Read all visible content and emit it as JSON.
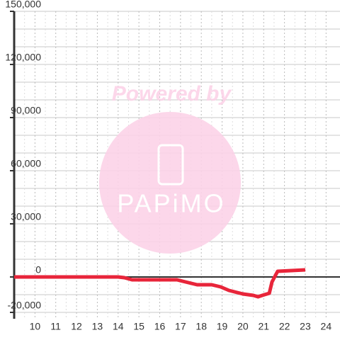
{
  "chart_data": {
    "type": "line",
    "watermark": {
      "line1": "Powered by",
      "line2": "PAPiMO"
    },
    "x": [
      9,
      14,
      14.3,
      14.67,
      16.83,
      17.1,
      17.8,
      18.5,
      18.93,
      19.33,
      20,
      20.5,
      20.73,
      20.93,
      21.27,
      21.4,
      21.67,
      23
    ],
    "series": [
      {
        "color": "#e8253a",
        "values": [
          0,
          0,
          -400,
          -1600,
          -1600,
          -2400,
          -4400,
          -4400,
          -5600,
          -7600,
          -9600,
          -10400,
          -11200,
          -10400,
          -9200,
          -2800,
          3200,
          4000
        ]
      }
    ],
    "xlim": [
      9,
      24.67
    ],
    "xticks": [
      10,
      11,
      12,
      13,
      14,
      15,
      16,
      17,
      18,
      19,
      20,
      21,
      22,
      23,
      24
    ],
    "ylim": [
      -23600,
      150000
    ],
    "yticks": [
      {
        "value": -20000,
        "label": "-20,000"
      },
      0,
      {
        "value": 30000,
        "label": "30,000"
      },
      {
        "value": 60000,
        "label": "60,000"
      },
      {
        "value": 90000,
        "label": "90,000"
      },
      {
        "value": 120000,
        "label": "120,000"
      },
      {
        "value": 150000,
        "label": "150,000"
      }
    ],
    "ygrid": [
      -20000,
      -10000,
      0,
      10000,
      20000,
      30000,
      40000,
      50000,
      60000,
      70000,
      80000,
      90000,
      100000,
      110000,
      120000,
      130000,
      140000,
      150000
    ],
    "grid": true
  }
}
